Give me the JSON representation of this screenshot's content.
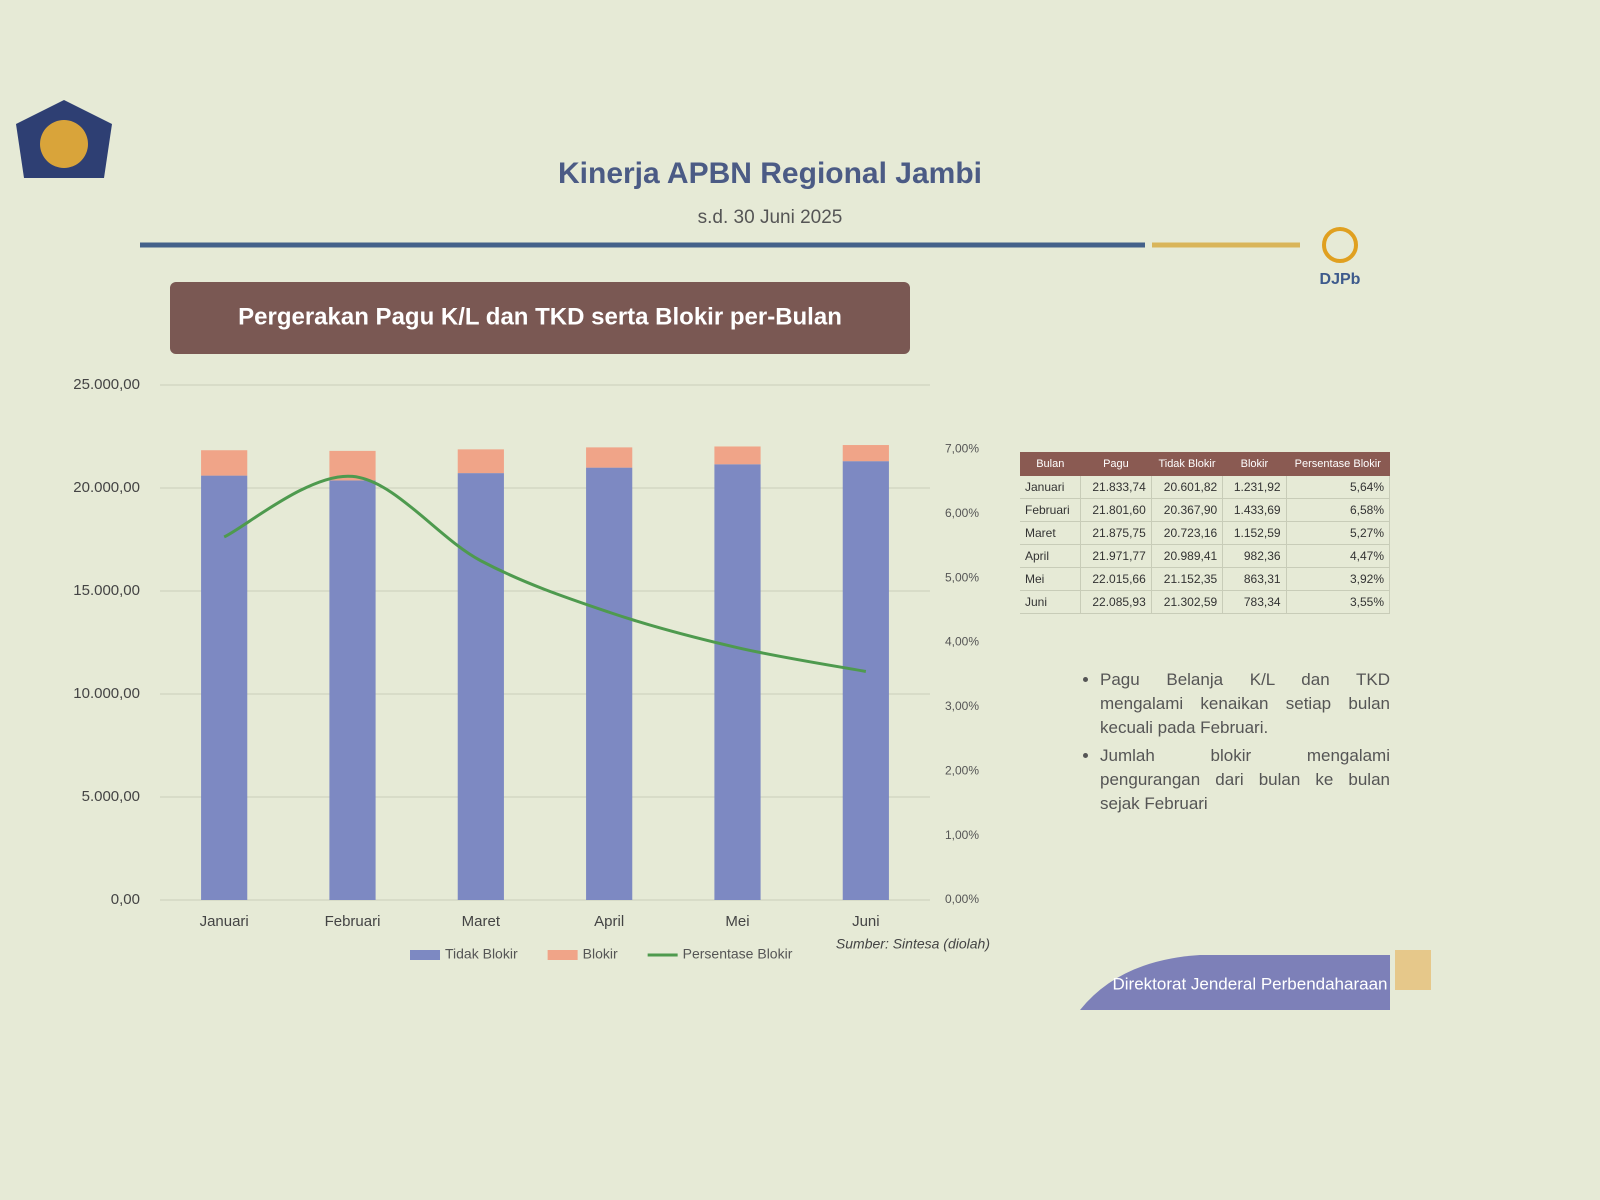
{
  "header": {
    "title": "Kinerja APBN Regional Jambi",
    "subtitle": "s.d. 30 Juni 2025",
    "logo": "DJPb"
  },
  "banner": "Pergerakan Pagu K/L dan TKD serta Blokir per-Bulan",
  "chart_data": {
    "type": "bar",
    "stacked": true,
    "categories": [
      "Januari",
      "Februari",
      "Maret",
      "April",
      "Mei",
      "Juni"
    ],
    "series": [
      {
        "name": "Tidak Blokir",
        "color": "#7d89c2",
        "values": [
          20601.82,
          20367.9,
          20723.16,
          20989.41,
          21152.35,
          21302.59
        ]
      },
      {
        "name": "Blokir",
        "color": "#f0a488",
        "values": [
          1231.92,
          1433.69,
          1152.59,
          982.36,
          863.31,
          783.34
        ]
      },
      {
        "name": "Persentase Blokir",
        "type": "line",
        "axis": "y2",
        "color": "#4e9a4e",
        "values": [
          5.64,
          6.58,
          5.27,
          4.47,
          3.92,
          3.55
        ]
      }
    ],
    "ylim": [
      0,
      25000
    ],
    "yticks": [
      {
        "value": 0,
        "label": "0,00"
      },
      {
        "value": 5000,
        "label": "5.000,00"
      },
      {
        "value": 10000,
        "label": "10.000,00"
      },
      {
        "value": 15000,
        "label": "15.000,00"
      },
      {
        "value": 20000,
        "label": "20.000,00"
      },
      {
        "value": 25000,
        "label": "25.000,00"
      }
    ],
    "y2lim": [
      0,
      8
    ],
    "y2ticks": [
      {
        "value": 0,
        "label": "0,00%"
      },
      {
        "value": 1,
        "label": "1,00%"
      },
      {
        "value": 2,
        "label": "2,00%"
      },
      {
        "value": 3,
        "label": "3,00%"
      },
      {
        "value": 4,
        "label": "4,00%"
      },
      {
        "value": 5,
        "label": "5,00%"
      },
      {
        "value": 6,
        "label": "6,00%"
      },
      {
        "value": 7,
        "label": "7,00%"
      }
    ],
    "grid": true,
    "legend": "bottom",
    "source": "Sumber: Sintesa (diolah)"
  },
  "table": {
    "header": [
      "Bulan",
      "Pagu",
      "Tidak Blokir",
      "Blokir",
      "Persentase Blokir"
    ],
    "rows": [
      [
        "Januari",
        "21.833,74",
        "20.601,82",
        "1.231,92",
        "5,64%"
      ],
      [
        "Februari",
        "21.801,60",
        "20.367,90",
        "1.433,69",
        "6,58%"
      ],
      [
        "Maret",
        "21.875,75",
        "20.723,16",
        "1.152,59",
        "5,27%"
      ],
      [
        "April",
        "21.971,77",
        "20.989,41",
        "982,36",
        "4,47%"
      ],
      [
        "Mei",
        "22.015,66",
        "21.152,35",
        "863,31",
        "3,92%"
      ],
      [
        "Juni",
        "22.085,93",
        "21.302,59",
        "783,34",
        "3,55%"
      ]
    ]
  },
  "bullets": [
    "Pagu Belanja K/L dan TKD mengalami kenaikan setiap bulan kecuali pada Februari.",
    "Jumlah blokir mengalami pengurangan dari bulan ke bulan sejak Februari"
  ],
  "footer": "Direktorat Jenderal Perbendaharaan"
}
